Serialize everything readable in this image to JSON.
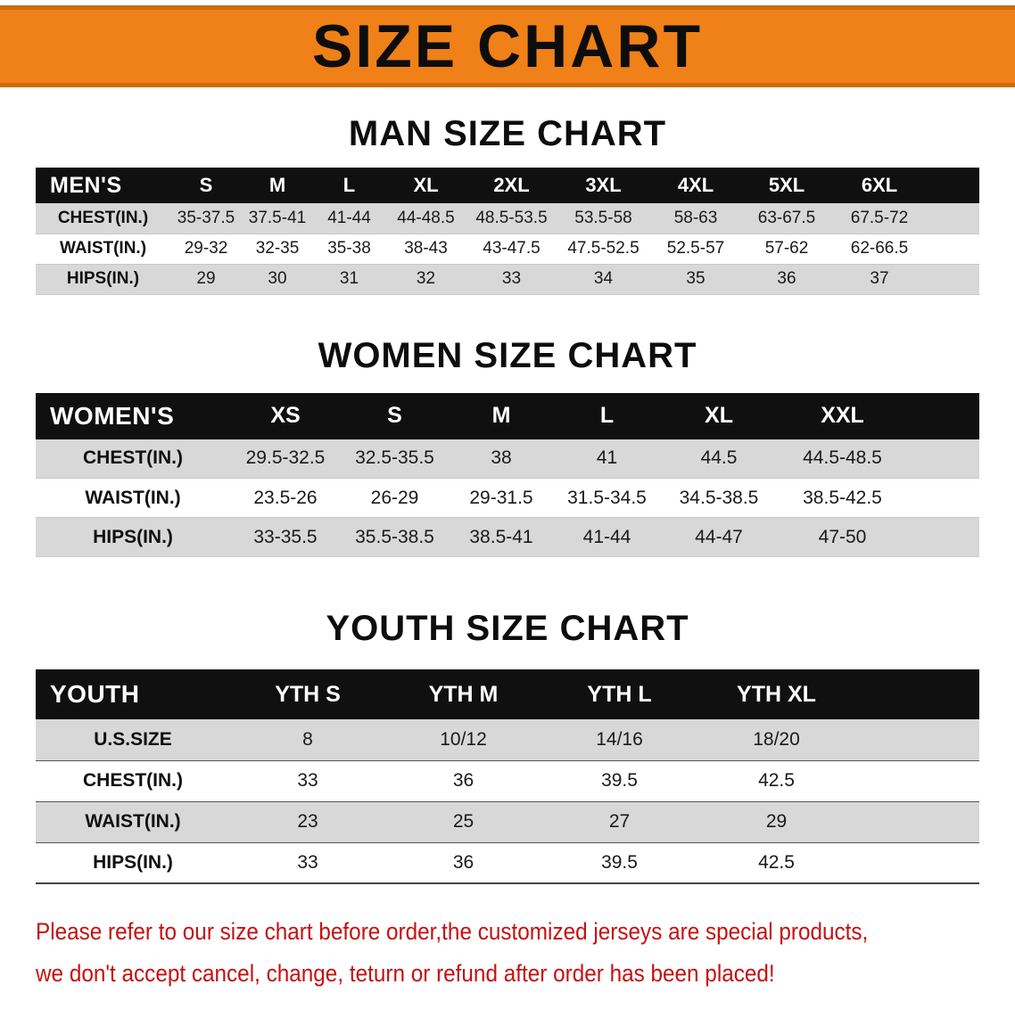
{
  "banner": {
    "title": "SIZE CHART"
  },
  "men": {
    "heading": "MAN SIZE CHART",
    "header": [
      "MEN'S",
      "S",
      "M",
      "L",
      "XL",
      "2XL",
      "3XL",
      "4XL",
      "5XL",
      "6XL"
    ],
    "rows": [
      [
        "CHEST(IN.)",
        "35-37.5",
        "37.5-41",
        "41-44",
        "44-48.5",
        "48.5-53.5",
        "53.5-58",
        "58-63",
        "63-67.5",
        "67.5-72"
      ],
      [
        "WAIST(IN.)",
        "29-32",
        "32-35",
        "35-38",
        "38-43",
        "43-47.5",
        "47.5-52.5",
        "52.5-57",
        "57-62",
        "62-66.5"
      ],
      [
        "HIPS(IN.)",
        "29",
        "30",
        "31",
        "32",
        "33",
        "34",
        "35",
        "36",
        "37"
      ]
    ]
  },
  "women": {
    "heading": "WOMEN SIZE CHART",
    "header": [
      "WOMEN'S",
      "XS",
      "S",
      "M",
      "L",
      "XL",
      "XXL"
    ],
    "rows": [
      [
        "CHEST(IN.)",
        "29.5-32.5",
        "32.5-35.5",
        "38",
        "41",
        "44.5",
        "44.5-48.5"
      ],
      [
        "WAIST(IN.)",
        "23.5-26",
        "26-29",
        "29-31.5",
        "31.5-34.5",
        "34.5-38.5",
        "38.5-42.5"
      ],
      [
        "HIPS(IN.)",
        "33-35.5",
        "35.5-38.5",
        "38.5-41",
        "41-44",
        "44-47",
        "47-50"
      ]
    ]
  },
  "youth": {
    "heading": "YOUTH SIZE CHART",
    "header": [
      "YOUTH",
      "YTH S",
      "YTH M",
      "YTH L",
      "YTH XL"
    ],
    "rows": [
      [
        "U.S.SIZE",
        "8",
        "10/12",
        "14/16",
        "18/20"
      ],
      [
        "CHEST(IN.)",
        "33",
        "36",
        "39.5",
        "42.5"
      ],
      [
        "WAIST(IN.)",
        "23",
        "25",
        "27",
        "29"
      ],
      [
        "HIPS(IN.)",
        "33",
        "36",
        "39.5",
        "42.5"
      ]
    ]
  },
  "disclaimer": {
    "line1": "Please refer to our size chart before order,the customized jerseys are special products,",
    "line2": "we don't accept cancel, change, teturn or refund after order has been placed!"
  },
  "colors": {
    "banner_bg": "#f08018",
    "banner_edge": "#cf6a0e",
    "header_bg": "#101010",
    "header_text": "#ffffff",
    "row_stripe": "#d8d8d8",
    "heading_text": "#0d0d0d",
    "disclaimer_text": "#c41111"
  }
}
